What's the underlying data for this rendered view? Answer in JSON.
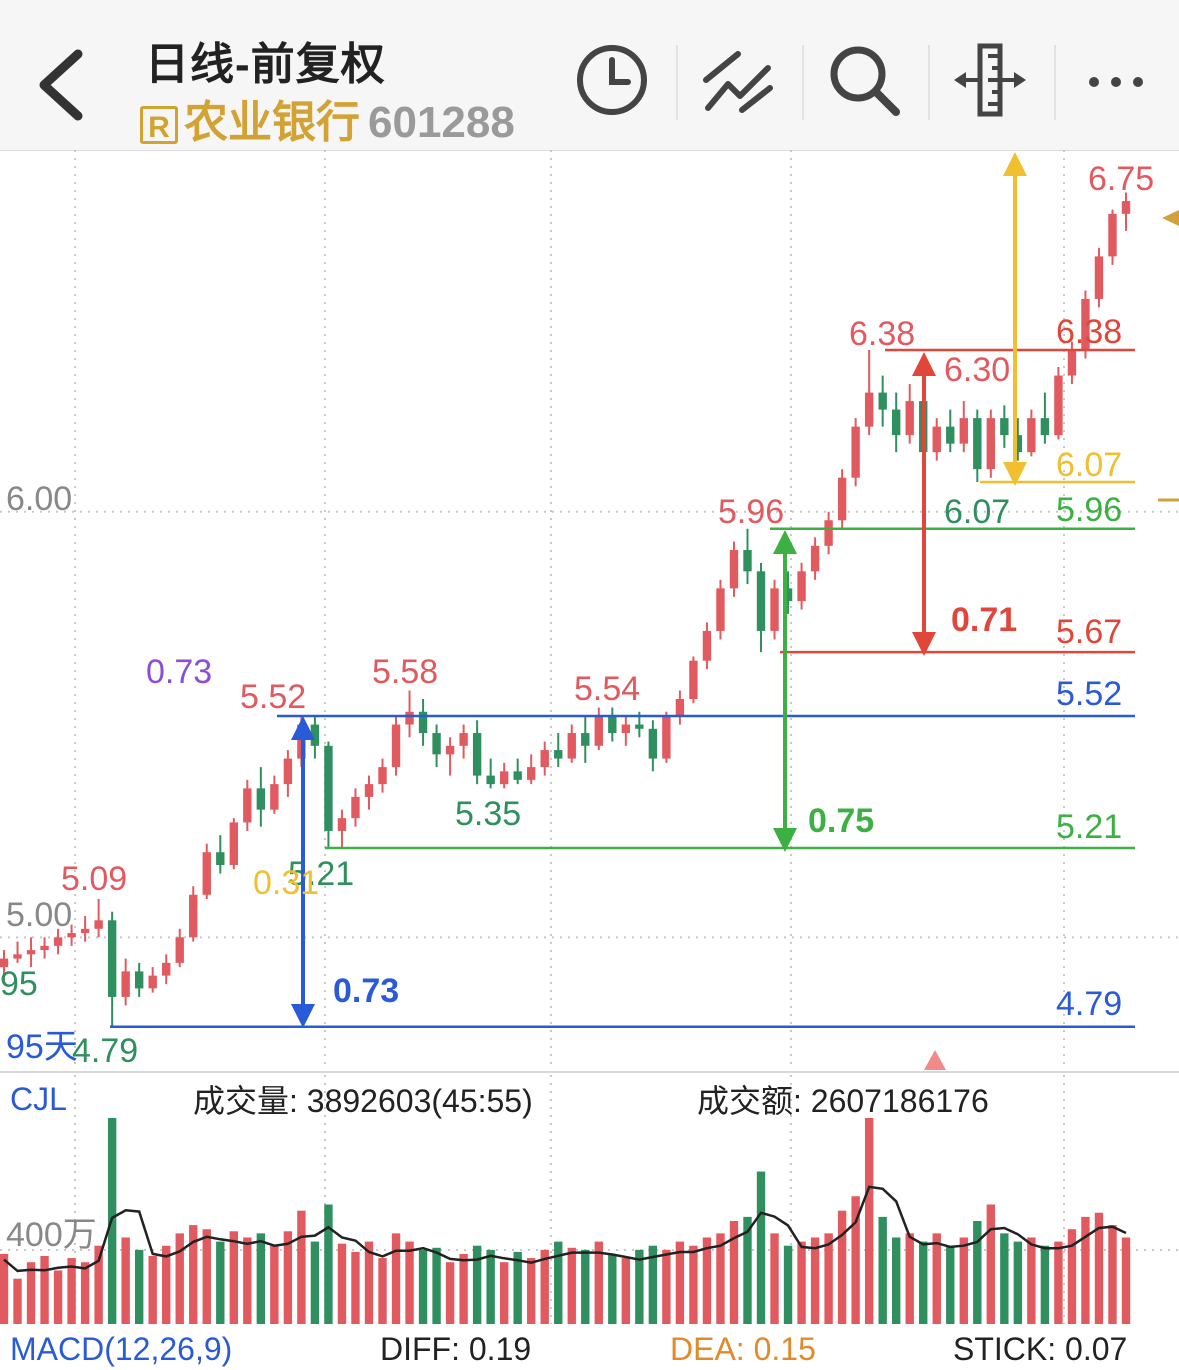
{
  "header": {
    "title": "日线-前复权",
    "badge": "R",
    "stock_name": "农业银行",
    "stock_code": "601288",
    "icons": [
      "back-arrow-icon",
      "clock-icon",
      "drawing-tool-icon",
      "search-icon",
      "ruler-icon",
      "more-icon"
    ]
  },
  "colors": {
    "up": "#e05a5f",
    "down": "#2f8f5e",
    "blue": "#2a5bd7",
    "green": "#3cb043",
    "red": "#e0473a",
    "yellow": "#f0c030",
    "purple": "#8a4fd6"
  },
  "price_axis": {
    "labels": [
      "6.00",
      "5.00"
    ],
    "range_hint": "95天"
  },
  "price_labels": [
    {
      "text": "6.75",
      "color": "up"
    },
    {
      "text": "6.38",
      "color": "up"
    },
    {
      "text": "6.30",
      "color": "up"
    },
    {
      "text": "6.07",
      "color": "down"
    },
    {
      "text": "5.96",
      "color": "up"
    },
    {
      "text": "5.58",
      "color": "up"
    },
    {
      "text": "5.54",
      "color": "up"
    },
    {
      "text": "5.52",
      "color": "up"
    },
    {
      "text": "5.35",
      "color": "down"
    },
    {
      "text": "5.21",
      "color": "down"
    },
    {
      "text": "5.09",
      "color": "up"
    },
    {
      "text": "4.79",
      "color": "down"
    },
    {
      "text": "95",
      "color": "down"
    }
  ],
  "level_lines": [
    {
      "price": 6.38,
      "label": "6.38",
      "color": "red"
    },
    {
      "price": 6.07,
      "label": "6.07",
      "color": "yellow"
    },
    {
      "price": 5.96,
      "label": "5.96",
      "color": "green"
    },
    {
      "price": 5.67,
      "label": "5.67",
      "color": "red"
    },
    {
      "price": 5.52,
      "label": "5.52",
      "color": "blue"
    },
    {
      "price": 5.21,
      "label": "5.21",
      "color": "green"
    },
    {
      "price": 4.79,
      "label": "4.79",
      "color": "blue"
    }
  ],
  "measurements": [
    {
      "label": "0.73",
      "color": "blue"
    },
    {
      "label": "0.75",
      "color": "green"
    },
    {
      "label": "0.71",
      "color": "red"
    },
    {
      "label": "0.31",
      "color": "yellow"
    },
    {
      "label": "0.73",
      "color": "purple"
    }
  ],
  "volume": {
    "indicator": "CJL",
    "volume_label": "成交量: 3892603(45:55)",
    "amount_label": "成交额: 2607186176",
    "axis_label": "400万"
  },
  "macd": {
    "name": "MACD(12,26,9)",
    "diff": "DIFF: 0.19",
    "dea": "DEA: 0.15",
    "stick": "STICK: 0.07"
  },
  "chart_data": {
    "type": "candlestick",
    "period": "daily, forward-adjusted",
    "candles_ohlc": [
      [
        4.93,
        4.97,
        4.9,
        4.95
      ],
      [
        4.95,
        4.99,
        4.94,
        4.96
      ],
      [
        4.96,
        5.0,
        4.93,
        4.97
      ],
      [
        4.97,
        5.0,
        4.95,
        4.98
      ],
      [
        4.98,
        5.02,
        4.96,
        5.0
      ],
      [
        5.0,
        5.03,
        4.98,
        5.01
      ],
      [
        5.01,
        5.05,
        4.99,
        5.02
      ],
      [
        5.02,
        5.09,
        5.0,
        5.04
      ],
      [
        5.04,
        5.06,
        4.79,
        4.86
      ],
      [
        4.86,
        4.95,
        4.84,
        4.92
      ],
      [
        4.92,
        4.94,
        4.86,
        4.88
      ],
      [
        4.88,
        4.93,
        4.87,
        4.91
      ],
      [
        4.91,
        4.96,
        4.89,
        4.94
      ],
      [
        4.94,
        5.02,
        4.93,
        5.0
      ],
      [
        5.0,
        5.12,
        4.99,
        5.1
      ],
      [
        5.1,
        5.22,
        5.09,
        5.2
      ],
      [
        5.2,
        5.24,
        5.15,
        5.17
      ],
      [
        5.17,
        5.28,
        5.16,
        5.27
      ],
      [
        5.27,
        5.37,
        5.25,
        5.35
      ],
      [
        5.35,
        5.4,
        5.26,
        5.3
      ],
      [
        5.3,
        5.38,
        5.29,
        5.36
      ],
      [
        5.36,
        5.44,
        5.33,
        5.42
      ],
      [
        5.42,
        5.52,
        5.4,
        5.5
      ],
      [
        5.5,
        5.52,
        5.42,
        5.45
      ],
      [
        5.45,
        5.46,
        5.21,
        5.25
      ],
      [
        5.25,
        5.3,
        5.21,
        5.28
      ],
      [
        5.28,
        5.35,
        5.26,
        5.33
      ],
      [
        5.33,
        5.38,
        5.3,
        5.36
      ],
      [
        5.36,
        5.42,
        5.34,
        5.4
      ],
      [
        5.4,
        5.52,
        5.38,
        5.5
      ],
      [
        5.5,
        5.58,
        5.47,
        5.53
      ],
      [
        5.53,
        5.56,
        5.45,
        5.48
      ],
      [
        5.48,
        5.5,
        5.4,
        5.43
      ],
      [
        5.43,
        5.47,
        5.38,
        5.45
      ],
      [
        5.45,
        5.5,
        5.42,
        5.48
      ],
      [
        5.48,
        5.51,
        5.36,
        5.38
      ],
      [
        5.38,
        5.42,
        5.35,
        5.36
      ],
      [
        5.36,
        5.41,
        5.35,
        5.39
      ],
      [
        5.39,
        5.42,
        5.36,
        5.37
      ],
      [
        5.37,
        5.43,
        5.36,
        5.4
      ],
      [
        5.4,
        5.46,
        5.38,
        5.44
      ],
      [
        5.44,
        5.48,
        5.4,
        5.42
      ],
      [
        5.42,
        5.5,
        5.41,
        5.48
      ],
      [
        5.48,
        5.52,
        5.41,
        5.45
      ],
      [
        5.45,
        5.54,
        5.44,
        5.52
      ],
      [
        5.52,
        5.54,
        5.46,
        5.48
      ],
      [
        5.48,
        5.52,
        5.45,
        5.5
      ],
      [
        5.5,
        5.53,
        5.47,
        5.49
      ],
      [
        5.49,
        5.51,
        5.39,
        5.42
      ],
      [
        5.42,
        5.53,
        5.41,
        5.52
      ],
      [
        5.52,
        5.58,
        5.5,
        5.56
      ],
      [
        5.56,
        5.66,
        5.55,
        5.65
      ],
      [
        5.65,
        5.74,
        5.63,
        5.72
      ],
      [
        5.72,
        5.84,
        5.7,
        5.82
      ],
      [
        5.82,
        5.93,
        5.8,
        5.91
      ],
      [
        5.91,
        5.96,
        5.83,
        5.86
      ],
      [
        5.86,
        5.88,
        5.67,
        5.72
      ],
      [
        5.72,
        5.84,
        5.7,
        5.82
      ],
      [
        5.82,
        5.86,
        5.76,
        5.79
      ],
      [
        5.79,
        5.88,
        5.77,
        5.86
      ],
      [
        5.86,
        5.94,
        5.84,
        5.92
      ],
      [
        5.92,
        6.0,
        5.9,
        5.98
      ],
      [
        5.98,
        6.1,
        5.96,
        6.08
      ],
      [
        6.08,
        6.22,
        6.06,
        6.2
      ],
      [
        6.2,
        6.38,
        6.18,
        6.28
      ],
      [
        6.28,
        6.32,
        6.2,
        6.24
      ],
      [
        6.24,
        6.28,
        6.14,
        6.18
      ],
      [
        6.18,
        6.3,
        6.16,
        6.26
      ],
      [
        6.26,
        6.28,
        6.1,
        6.14
      ],
      [
        6.14,
        6.22,
        6.12,
        6.2
      ],
      [
        6.2,
        6.24,
        6.14,
        6.16
      ],
      [
        6.16,
        6.26,
        6.14,
        6.22
      ],
      [
        6.22,
        6.24,
        6.07,
        6.1
      ],
      [
        6.1,
        6.24,
        6.08,
        6.22
      ],
      [
        6.22,
        6.25,
        6.15,
        6.18
      ],
      [
        6.18,
        6.22,
        6.12,
        6.14
      ],
      [
        6.14,
        6.24,
        6.13,
        6.22
      ],
      [
        6.22,
        6.28,
        6.16,
        6.18
      ],
      [
        6.18,
        6.34,
        6.17,
        6.32
      ],
      [
        6.32,
        6.4,
        6.3,
        6.38
      ],
      [
        6.38,
        6.52,
        6.36,
        6.5
      ],
      [
        6.5,
        6.62,
        6.48,
        6.6
      ],
      [
        6.6,
        6.71,
        6.58,
        6.7
      ],
      [
        6.7,
        6.75,
        6.66,
        6.73
      ]
    ],
    "volume_relative": [
      0.34,
      0.22,
      0.3,
      0.33,
      0.26,
      0.32,
      0.3,
      0.38,
      1.0,
      0.42,
      0.36,
      0.33,
      0.38,
      0.44,
      0.48,
      0.46,
      0.4,
      0.45,
      0.42,
      0.44,
      0.38,
      0.45,
      0.55,
      0.4,
      0.58,
      0.39,
      0.35,
      0.4,
      0.32,
      0.44,
      0.4,
      0.36,
      0.37,
      0.3,
      0.34,
      0.38,
      0.36,
      0.3,
      0.35,
      0.32,
      0.36,
      0.4,
      0.37,
      0.36,
      0.4,
      0.34,
      0.32,
      0.36,
      0.38,
      0.36,
      0.4,
      0.38,
      0.42,
      0.44,
      0.5,
      0.52,
      0.74,
      0.44,
      0.38,
      0.4,
      0.42,
      0.44,
      0.55,
      0.62,
      1.0,
      0.52,
      0.42,
      0.44,
      0.4,
      0.44,
      0.38,
      0.42,
      0.5,
      0.58,
      0.44,
      0.4,
      0.42,
      0.38,
      0.4,
      0.46,
      0.52,
      0.54,
      0.48,
      0.42
    ],
    "ylim": [
      4.7,
      6.85
    ]
  }
}
